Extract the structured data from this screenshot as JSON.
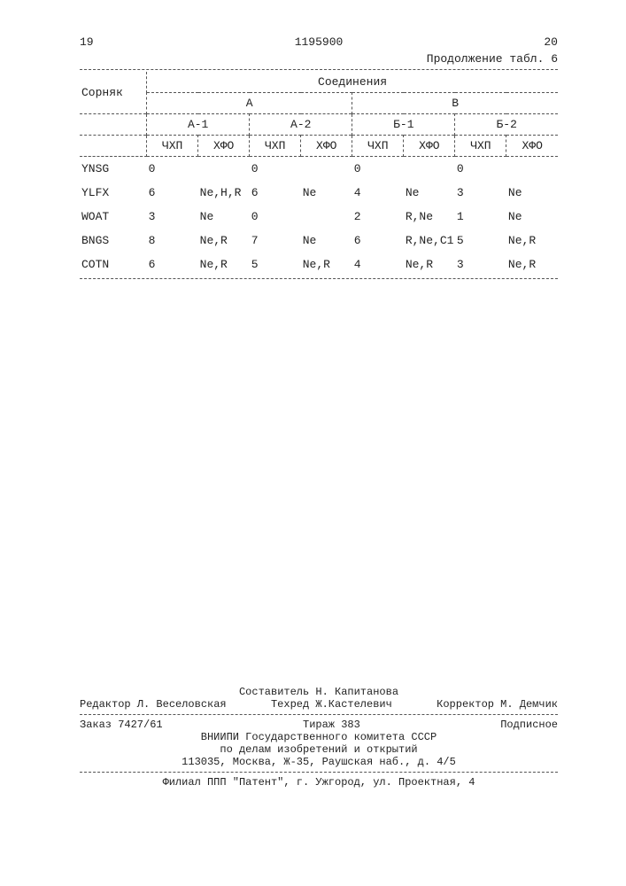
{
  "page_left": "19",
  "doc_number": "1195900",
  "page_right": "20",
  "continuation": "Продолжение табл. 6",
  "table": {
    "row_header": "Сорняк",
    "top_header": "Соединения",
    "groupA": "А",
    "groupB": "В",
    "A1": "А-1",
    "A2": "А-2",
    "B1": "Б-1",
    "B2": "Б-2",
    "chxp": "ЧХП",
    "xfo": "ХФО",
    "rows": [
      {
        "name": "YNSG",
        "a1c": "0",
        "a1x": "",
        "a2c": "0",
        "a2x": "",
        "b1c": "0",
        "b1x": "",
        "b2c": "0",
        "b2x": ""
      },
      {
        "name": "YLFX",
        "a1c": "6",
        "a1x": "Ne,H,R",
        "a2c": "6",
        "a2x": "Ne",
        "b1c": "4",
        "b1x": "Ne",
        "b2c": "3",
        "b2x": "Ne"
      },
      {
        "name": "WOAT",
        "a1c": "3",
        "a1x": "Ne",
        "a2c": "0",
        "a2x": "",
        "b1c": "2",
        "b1x": "R,Ne",
        "b2c": "1",
        "b2x": "Ne"
      },
      {
        "name": "BNGS",
        "a1c": "8",
        "a1x": "Ne,R",
        "a2c": "7",
        "a2x": "Ne",
        "b1c": "6",
        "b1x": "R,Ne,C1",
        "b2c": "5",
        "b2x": "Ne,R"
      },
      {
        "name": "COTN",
        "a1c": "6",
        "a1x": "Ne,R",
        "a2c": "5",
        "a2x": "Ne,R",
        "b1c": "4",
        "b1x": "Ne,R",
        "b2c": "3",
        "b2x": "Ne,R"
      }
    ]
  },
  "footer": {
    "compiler": "Составитель Н. Капитанова",
    "editor": "Редактор Л. Веселовская",
    "techred": "Техред Ж.Кастелевич",
    "corrector": "Корректор М. Демчик",
    "order": "Заказ 7427/61",
    "tirage": "Тираж 383",
    "subscription": "Подписное",
    "org1": "ВНИИПИ Государственного комитета СССР",
    "org2": "по делам изобретений и открытий",
    "addr1": "113035, Москва, Ж-35, Раушская наб., д. 4/5",
    "branch": "Филиал ППП \"Патент\", г. Ужгород, ул. Проектная, 4"
  }
}
